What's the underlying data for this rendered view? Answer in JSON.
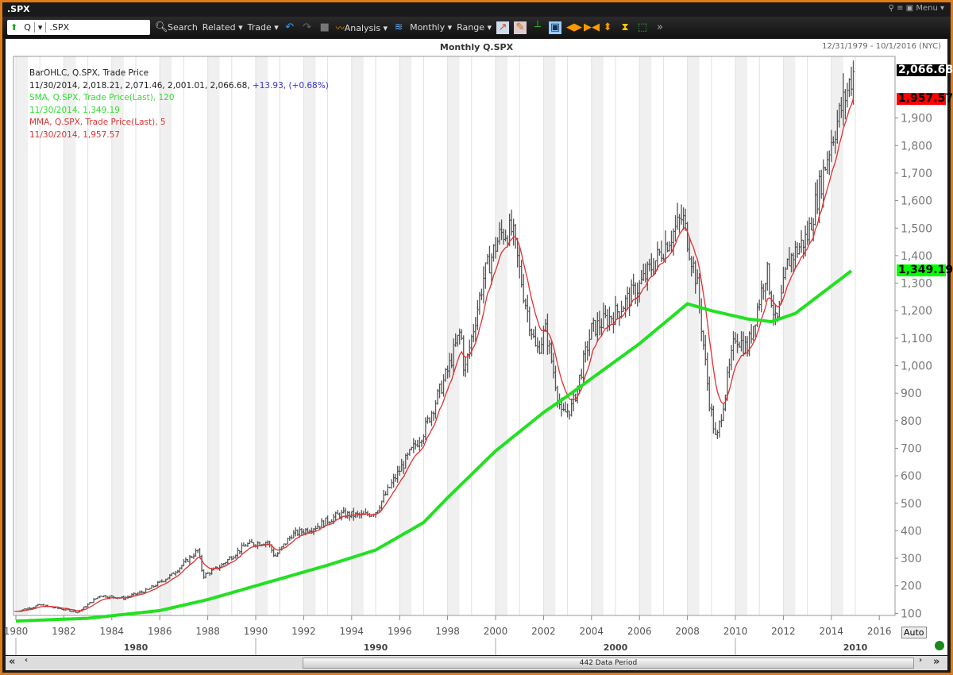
{
  "window": {
    "title": ".SPX",
    "menu": "Menu"
  },
  "toolbar": {
    "symbol_prefix": "Q",
    "symbol": ".SPX",
    "search": "Search",
    "related": "Related ▾",
    "trade": "Trade ▾",
    "analysis": "Analysis ▾",
    "period": "Monthly ▾",
    "range": "Range ▾"
  },
  "chart": {
    "title": "Monthly Q.SPX",
    "date_range": "12/31/1979 - 10/1/2016 (NYC)",
    "auto": "Auto",
    "data_period": "442 Data Period"
  },
  "legend": {
    "l1": "BarOHLC, Q.SPX, Trade Price",
    "l2": "11/30/2014, 2,018.21, 2,071.46, 2,001.01, 2,066.68,",
    "l2b": " +13.93, (+0.68%)",
    "l3": "SMA, Q.SPX, Trade Price(Last),  120",
    "l4": "11/30/2014, 1,349.19",
    "l5": "MMA, Q.SPX, Trade Price(Last),  5",
    "l6": "11/30/2014, 1,957.57"
  },
  "badges": {
    "last": "2,066.68",
    "mma": "1,957.57",
    "sma": "1,349.19"
  },
  "colors": {
    "bars": "#555555",
    "sma": "#22e022",
    "mma": "#e03030",
    "change": "#3333cc"
  },
  "chart_data": {
    "type": "ohlc",
    "title": "Monthly Q.SPX",
    "xlim": [
      1980,
      2016
    ],
    "ylim": [
      0,
      2100
    ],
    "x_ticks": [
      1980,
      1982,
      1984,
      1986,
      1988,
      1990,
      1992,
      1994,
      1996,
      1998,
      2000,
      2002,
      2004,
      2006,
      2008,
      2010,
      2012,
      2014,
      2016
    ],
    "decade_labels": [
      "1980",
      "1990",
      "2000",
      "2010"
    ],
    "y_ticks": [
      "100",
      "200",
      "300",
      "400",
      "500",
      "600",
      "700",
      "800",
      "900",
      "1,000",
      "1,100",
      "1,200",
      "1,300",
      "1,400",
      "1,500",
      "1,600",
      "1,700",
      "1,800",
      "1,900"
    ],
    "price_keypoints": [
      [
        1980,
        107
      ],
      [
        1981,
        130
      ],
      [
        1982.6,
        105
      ],
      [
        1983.5,
        165
      ],
      [
        1984.5,
        155
      ],
      [
        1985.5,
        185
      ],
      [
        1986.5,
        240
      ],
      [
        1987.6,
        330
      ],
      [
        1987.8,
        235
      ],
      [
        1988.5,
        270
      ],
      [
        1989.6,
        350
      ],
      [
        1990.5,
        360
      ],
      [
        1990.8,
        305
      ],
      [
        1991.5,
        385
      ],
      [
        1992.5,
        415
      ],
      [
        1993.5,
        460
      ],
      [
        1994.5,
        455
      ],
      [
        1995,
        470
      ],
      [
        1996,
        620
      ],
      [
        1997,
        760
      ],
      [
        1998,
        980
      ],
      [
        1998.55,
        1130
      ],
      [
        1998.7,
        970
      ],
      [
        1999.5,
        1320
      ],
      [
        2000.2,
        1480
      ],
      [
        2000.7,
        1490
      ],
      [
        2001.2,
        1250
      ],
      [
        2001.7,
        1050
      ],
      [
        2002.1,
        1130
      ],
      [
        2002.75,
        820
      ],
      [
        2003.2,
        850
      ],
      [
        2004,
        1130
      ],
      [
        2005,
        1190
      ],
      [
        2006,
        1290
      ],
      [
        2007.8,
        1540
      ],
      [
        2008.4,
        1300
      ],
      [
        2008.9,
        880
      ],
      [
        2009.2,
        720
      ],
      [
        2010,
        1110
      ],
      [
        2010.5,
        1060
      ],
      [
        2011.3,
        1350
      ],
      [
        2011.7,
        1140
      ],
      [
        2012.2,
        1380
      ],
      [
        2013,
        1470
      ],
      [
        2014,
        1820
      ],
      [
        2014.9,
        2066
      ]
    ],
    "series": [
      {
        "name": "SMA 120",
        "values": [
          [
            1980,
            72
          ],
          [
            1983,
            82
          ],
          [
            1986,
            110
          ],
          [
            1988,
            150
          ],
          [
            1990,
            200
          ],
          [
            1993,
            275
          ],
          [
            1995,
            330
          ],
          [
            1997,
            430
          ],
          [
            1998,
            520
          ],
          [
            2000,
            690
          ],
          [
            2002,
            830
          ],
          [
            2003,
            890
          ],
          [
            2006,
            1080
          ],
          [
            2008,
            1225
          ],
          [
            2009,
            1200
          ],
          [
            2010.5,
            1170
          ],
          [
            2011.5,
            1160
          ],
          [
            2012.5,
            1190
          ],
          [
            2014.9,
            1349
          ]
        ]
      },
      {
        "name": "MMA 5",
        "values": "smoothed price"
      }
    ]
  }
}
